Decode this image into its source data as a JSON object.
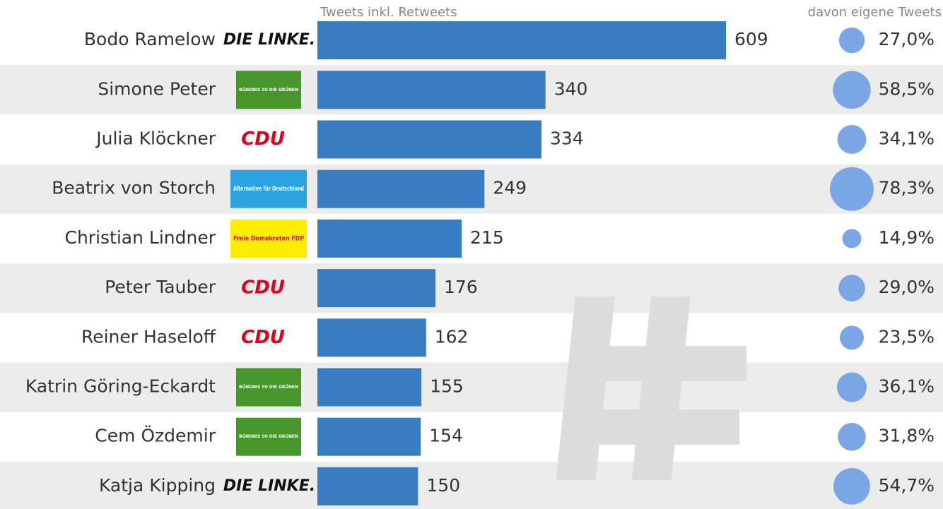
{
  "chart_data": {
    "type": "bar",
    "categories": [
      "Bodo Ramelow",
      "Simone Peter",
      "Julia Klöckner",
      "Beatrix von Storch",
      "Christian Lindner",
      "Peter Tauber",
      "Reiner Haseloff",
      "Katrin Göring-Eckardt",
      "Cem Özdemir",
      "Katja Kipping"
    ],
    "parties": [
      "DIE LINKE.",
      "BÜNDNIS 90 DIE GRÜNEN",
      "CDU",
      "Alternative für Deutschland",
      "Freie Demokraten FDP",
      "CDU",
      "CDU",
      "BÜNDNIS 90 DIE GRÜNEN",
      "BÜNDNIS 90 DIE GRÜNEN",
      "DIE LINKE."
    ],
    "series": [
      {
        "name": "Tweets inkl. Retweets",
        "color": "#3a7cc2",
        "values": [
          609,
          340,
          334,
          249,
          215,
          176,
          162,
          155,
          154,
          150
        ]
      },
      {
        "name": "davon eigene Tweets",
        "color": "#7ba6e6",
        "values": [
          27.0,
          58.5,
          34.1,
          78.3,
          14.9,
          29.0,
          23.5,
          36.1,
          31.8,
          54.7
        ],
        "value_labels": [
          "27,0%",
          "58,5%",
          "34,1%",
          "78,3%",
          "14,9%",
          "29,0%",
          "23,5%",
          "36,1%",
          "31,8%",
          "54,7%"
        ]
      }
    ]
  }
}
